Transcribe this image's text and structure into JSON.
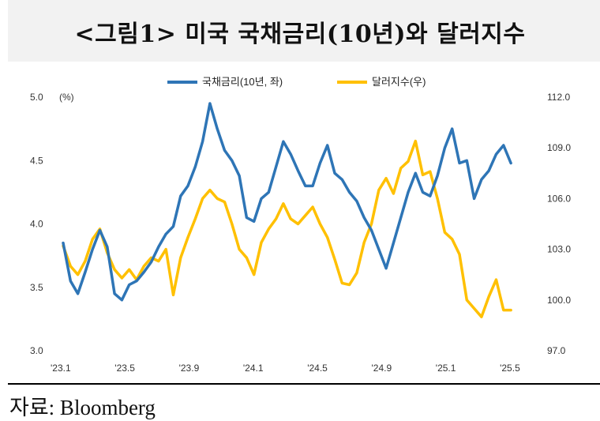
{
  "header": {
    "title": "<그림1> 미국 국채금리(10년)와 달러지수"
  },
  "footer": {
    "source": "자료: Bloomberg"
  },
  "chart_data": {
    "type": "line",
    "title": "<그림1> 미국 국채금리(10년)와 달러지수",
    "x_tick_labels": [
      "'23.1",
      "'23.5",
      "'23.9",
      "'24.1",
      "'24.5",
      "'24.9",
      "'25.1",
      "'25.5"
    ],
    "x_range": [
      0,
      32
    ],
    "left_axis": {
      "unit": "(%)",
      "ylim": [
        3.0,
        5.0
      ],
      "ticks": [
        "3.0",
        "3.5",
        "4.0",
        "4.5",
        "5.0"
      ]
    },
    "right_axis": {
      "ylim": [
        97.0,
        112.0
      ],
      "ticks": [
        "97.0",
        "100.0",
        "103.0",
        "106.0",
        "109.0",
        "112.0"
      ]
    },
    "grid": false,
    "legend_position": "top-center",
    "series": [
      {
        "name": "국채금리(10년, 좌)",
        "axis": "left",
        "color": "#2e75b6",
        "x": [
          0,
          0.5,
          1,
          1.5,
          2,
          2.5,
          3,
          3.5,
          4,
          4.5,
          5,
          5.5,
          6,
          6.5,
          7,
          7.5,
          8,
          8.5,
          9,
          9.5,
          10,
          10.5,
          11,
          11.5,
          12,
          12.5,
          13,
          13.5,
          14,
          14.5,
          15,
          15.5,
          16,
          16.5,
          17,
          17.5,
          18,
          18.5,
          19,
          19.5,
          20,
          20.5,
          21,
          21.5,
          22,
          22.5,
          23,
          23.5,
          24,
          24.5,
          25,
          25.5,
          26,
          26.5,
          27,
          27.5,
          28,
          28.5,
          29,
          29.5,
          30,
          30.5
        ],
        "values": [
          3.85,
          3.55,
          3.45,
          3.62,
          3.8,
          3.95,
          3.82,
          3.45,
          3.4,
          3.52,
          3.55,
          3.62,
          3.7,
          3.82,
          3.92,
          3.98,
          4.22,
          4.3,
          4.45,
          4.65,
          4.95,
          4.75,
          4.58,
          4.5,
          4.38,
          4.05,
          4.02,
          4.2,
          4.25,
          4.45,
          4.65,
          4.55,
          4.42,
          4.3,
          4.3,
          4.48,
          4.62,
          4.4,
          4.35,
          4.25,
          4.18,
          4.05,
          3.95,
          3.8,
          3.65,
          3.85,
          4.05,
          4.25,
          4.4,
          4.25,
          4.22,
          4.38,
          4.6,
          4.75,
          4.48,
          4.5,
          4.2,
          4.35,
          4.42,
          4.55,
          4.62,
          4.48
        ]
      },
      {
        "name": "달러지수(우)",
        "axis": "right",
        "color": "#ffc000",
        "x": [
          0,
          0.5,
          1,
          1.5,
          2,
          2.5,
          3,
          3.5,
          4,
          4.5,
          5,
          5.5,
          6,
          6.5,
          7,
          7.5,
          8,
          8.5,
          9,
          9.5,
          10,
          10.5,
          11,
          11.5,
          12,
          12.5,
          13,
          13.5,
          14,
          14.5,
          15,
          15.5,
          16,
          16.5,
          17,
          17.5,
          18,
          18.5,
          19,
          19.5,
          20,
          20.5,
          21,
          21.5,
          22,
          22.5,
          23,
          23.5,
          24,
          24.5,
          25,
          25.5,
          26,
          26.5,
          27,
          27.5,
          28,
          28.5,
          29,
          29.5,
          30,
          30.5
        ],
        "values": [
          103.2,
          102.0,
          101.5,
          102.3,
          103.6,
          104.2,
          102.8,
          101.8,
          101.3,
          101.8,
          101.2,
          102.0,
          102.5,
          102.3,
          103.0,
          100.3,
          102.5,
          103.7,
          104.8,
          106.0,
          106.5,
          106.0,
          105.8,
          104.5,
          103.0,
          102.5,
          101.5,
          103.4,
          104.2,
          104.8,
          105.7,
          104.8,
          104.5,
          105.0,
          105.5,
          104.5,
          103.7,
          102.4,
          101.0,
          100.9,
          101.6,
          103.4,
          104.5,
          106.5,
          107.2,
          106.3,
          107.8,
          108.2,
          109.4,
          107.4,
          107.6,
          106.0,
          104.0,
          103.6,
          102.7,
          100.0,
          99.5,
          99.0,
          100.2,
          101.2,
          99.4,
          99.4
        ]
      }
    ]
  }
}
